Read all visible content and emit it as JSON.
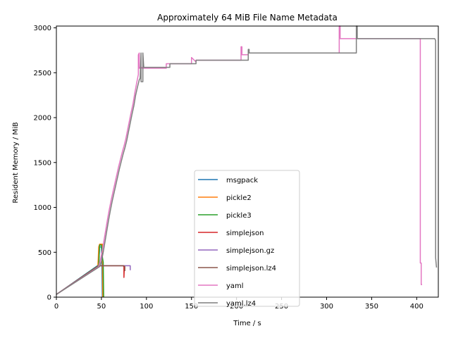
{
  "chart_data": {
    "type": "line",
    "title": "Approximately 64 MiB File Name Metadata",
    "xlabel": "Time / s",
    "ylabel": "Resident Memory / MiB",
    "xlim": [
      0,
      424
    ],
    "ylim": [
      0,
      3020
    ],
    "xticks": [
      0,
      50,
      100,
      150,
      200,
      250,
      300,
      350,
      400
    ],
    "yticks": [
      0,
      500,
      1000,
      1500,
      2000,
      2500,
      3000
    ],
    "grid": false,
    "legend_position": "lower-center",
    "series": [
      {
        "name": "msgpack",
        "color": "#1f77b4",
        "x": [
          0,
          47,
          48,
          50,
          50.5,
          51
        ],
        "y": [
          30,
          360,
          560,
          560,
          400,
          0
        ]
      },
      {
        "name": "pickle2",
        "color": "#ff7f0e",
        "x": [
          0,
          46,
          46.5,
          47,
          48,
          50,
          51,
          51.5
        ],
        "y": [
          30,
          340,
          430,
          560,
          590,
          590,
          590,
          0
        ]
      },
      {
        "name": "pickle3",
        "color": "#2ca02c",
        "x": [
          0,
          47,
          48,
          50,
          51,
          52,
          52.5
        ],
        "y": [
          30,
          355,
          580,
          580,
          450,
          390,
          0
        ]
      },
      {
        "name": "simplejson",
        "color": "#d62728",
        "x": [
          0,
          47,
          48,
          74,
          75,
          75,
          75.5
        ],
        "y": [
          30,
          350,
          350,
          350,
          340,
          220,
          340
        ]
      },
      {
        "name": "simplejson.gz",
        "color": "#9467bd",
        "x": [
          0,
          47,
          48,
          81,
          82,
          82
        ],
        "y": [
          30,
          350,
          350,
          350,
          350,
          300
        ]
      },
      {
        "name": "simplejson.lz4",
        "color": "#8c564b",
        "x": [
          0,
          47,
          48,
          75,
          76,
          76
        ],
        "y": [
          30,
          350,
          350,
          350,
          340,
          290
        ]
      },
      {
        "name": "yaml",
        "color": "#e377c2",
        "x": [
          0,
          47,
          49,
          51,
          53,
          55,
          57,
          59,
          61,
          63,
          65,
          67,
          69,
          71,
          73,
          75,
          77,
          79,
          81,
          83,
          85,
          87,
          89,
          91,
          91,
          92,
          92,
          93,
          93,
          95,
          95,
          122,
          122,
          126,
          126,
          150,
          150,
          155,
          155,
          205,
          205,
          206,
          206,
          213,
          213,
          314,
          314,
          315,
          315,
          404,
          404,
          405,
          405,
          406
        ],
        "y": [
          30,
          340,
          420,
          520,
          640,
          760,
          880,
          990,
          1090,
          1180,
          1270,
          1360,
          1450,
          1530,
          1610,
          1680,
          1760,
          1860,
          1960,
          2060,
          2150,
          2270,
          2380,
          2480,
          2700,
          2720,
          2550,
          2550,
          2560,
          2560,
          2550,
          2550,
          2600,
          2600,
          2600,
          2600,
          2670,
          2620,
          2640,
          2640,
          2790,
          2790,
          2700,
          2700,
          2720,
          2720,
          3020,
          3020,
          2880,
          2880,
          380,
          380,
          140,
          140
        ]
      },
      {
        "name": "yaml.lz4",
        "color": "#7f7f7f",
        "x": [
          0,
          48,
          50,
          52,
          54,
          56,
          58,
          60,
          62,
          64,
          66,
          68,
          70,
          72,
          74,
          76,
          78,
          80,
          82,
          84,
          86,
          88,
          90,
          92,
          93,
          94,
          94,
          96,
          96,
          97,
          97,
          126,
          126,
          155,
          155,
          213,
          213,
          214,
          214,
          333,
          333,
          334,
          334,
          420,
          420,
          421,
          421,
          422
        ],
        "y": [
          30,
          340,
          400,
          500,
          620,
          740,
          860,
          970,
          1070,
          1160,
          1250,
          1340,
          1430,
          1510,
          1590,
          1660,
          1740,
          1840,
          1940,
          2040,
          2130,
          2250,
          2340,
          2420,
          2440,
          2720,
          2400,
          2400,
          2720,
          2560,
          2560,
          2560,
          2600,
          2600,
          2640,
          2640,
          2760,
          2760,
          2720,
          2720,
          3020,
          3020,
          2880,
          2880,
          2880,
          2860,
          440,
          330
        ]
      }
    ]
  }
}
